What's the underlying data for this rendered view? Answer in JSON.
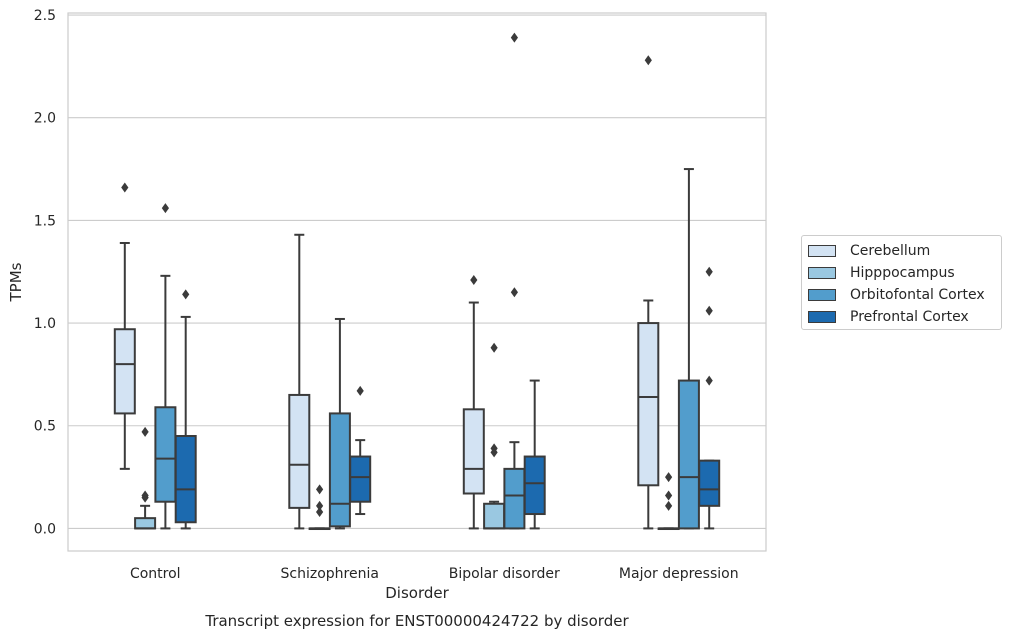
{
  "chart_data": {
    "type": "box",
    "title": "Transcript expression for ENST00000424722 by disorder",
    "xlabel": "Disorder",
    "ylabel": "TPMs",
    "ylim": [
      -0.11,
      2.51
    ],
    "yticks": [
      0.0,
      0.5,
      1.0,
      1.5,
      2.0,
      2.5
    ],
    "ytick_labels": [
      "0.0",
      "0.5",
      "1.0",
      "1.5",
      "2.0",
      "2.5"
    ],
    "grid": true,
    "legend": "right-outside",
    "categories": [
      "Control",
      "Schizophrenia",
      "Bipolar disorder",
      "Major depression"
    ],
    "series": [
      {
        "name": "Cerebellum",
        "color": "#d3e3f3",
        "boxes": [
          {
            "whislo": 0.29,
            "q1": 0.56,
            "med": 0.8,
            "q3": 0.97,
            "whishi": 1.39,
            "fliers": [
              1.66
            ]
          },
          {
            "whislo": 0.0,
            "q1": 0.1,
            "med": 0.31,
            "q3": 0.65,
            "whishi": 1.43,
            "fliers": []
          },
          {
            "whislo": 0.0,
            "q1": 0.17,
            "med": 0.29,
            "q3": 0.58,
            "whishi": 1.1,
            "fliers": [
              1.21
            ]
          },
          {
            "whislo": 0.0,
            "q1": 0.21,
            "med": 0.64,
            "q3": 1.0,
            "whishi": 1.11,
            "fliers": [
              2.28
            ]
          }
        ]
      },
      {
        "name": "Hipppocampus",
        "color": "#9ac8e1",
        "boxes": [
          {
            "whislo": 0.0,
            "q1": 0.0,
            "med": 0.0,
            "q3": 0.05,
            "whishi": 0.11,
            "fliers": [
              0.15,
              0.16,
              0.47
            ]
          },
          {
            "whislo": 0.0,
            "q1": 0.0,
            "med": 0.0,
            "q3": 0.0,
            "whishi": 0.0,
            "fliers": [
              0.08,
              0.11,
              0.19
            ]
          },
          {
            "whislo": 0.0,
            "q1": 0.0,
            "med": 0.0,
            "q3": 0.12,
            "whishi": 0.13,
            "fliers": [
              0.37,
              0.39,
              0.88
            ]
          },
          {
            "whislo": 0.0,
            "q1": 0.0,
            "med": 0.0,
            "q3": 0.0,
            "whishi": 0.0,
            "fliers": [
              0.11,
              0.16,
              0.25
            ]
          }
        ]
      },
      {
        "name": "Orbitofontal Cortex",
        "color": "#529dcc",
        "boxes": [
          {
            "whislo": 0.0,
            "q1": 0.13,
            "med": 0.34,
            "q3": 0.59,
            "whishi": 1.23,
            "fliers": [
              1.56
            ]
          },
          {
            "whislo": 0.0,
            "q1": 0.01,
            "med": 0.12,
            "q3": 0.56,
            "whishi": 1.02,
            "fliers": []
          },
          {
            "whislo": 0.0,
            "q1": 0.0,
            "med": 0.16,
            "q3": 0.29,
            "whishi": 0.42,
            "fliers": [
              1.15,
              2.39
            ]
          },
          {
            "whislo": 0.0,
            "q1": 0.0,
            "med": 0.25,
            "q3": 0.72,
            "whishi": 1.75,
            "fliers": []
          }
        ]
      },
      {
        "name": "Prefrontal Cortex",
        "color": "#1c6aaf",
        "boxes": [
          {
            "whislo": 0.0,
            "q1": 0.03,
            "med": 0.19,
            "q3": 0.45,
            "whishi": 1.03,
            "fliers": [
              1.14
            ]
          },
          {
            "whislo": 0.07,
            "q1": 0.13,
            "med": 0.25,
            "q3": 0.35,
            "whishi": 0.43,
            "fliers": [
              0.67
            ]
          },
          {
            "whislo": 0.0,
            "q1": 0.07,
            "med": 0.22,
            "q3": 0.35,
            "whishi": 0.72,
            "fliers": []
          },
          {
            "whislo": 0.0,
            "q1": 0.11,
            "med": 0.19,
            "q3": 0.33,
            "whishi": 0.33,
            "fliers": [
              0.72,
              1.06,
              1.25
            ]
          }
        ]
      }
    ]
  }
}
